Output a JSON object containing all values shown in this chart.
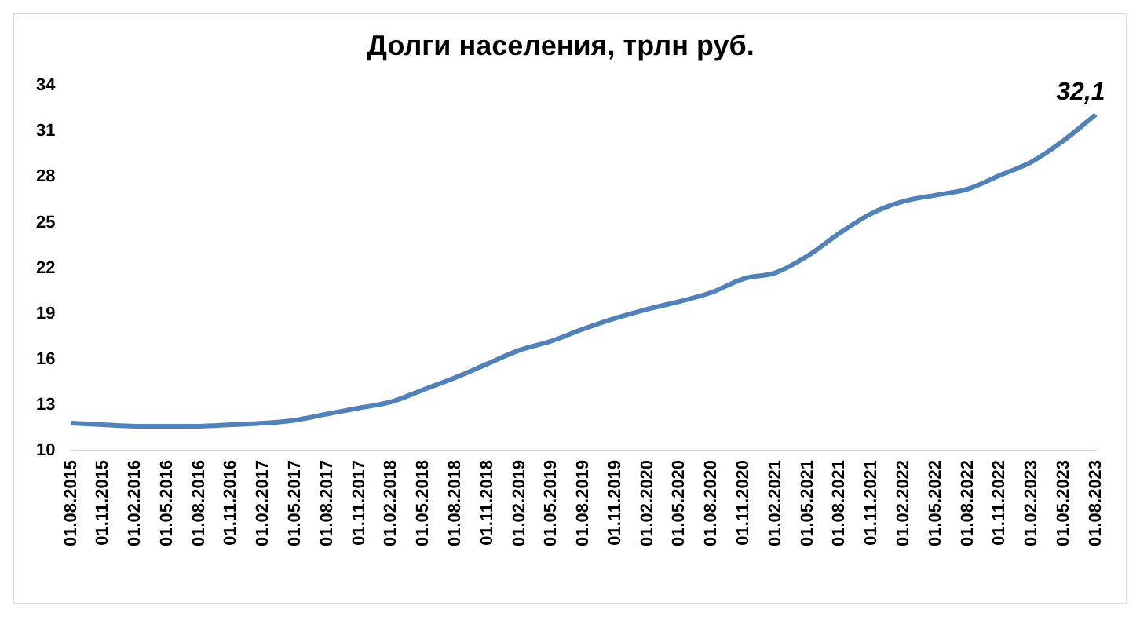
{
  "chart_data": {
    "type": "line",
    "title": "Долги населения, трлн руб.",
    "categories": [
      "01.08.2015",
      "01.11.2015",
      "01.02.2016",
      "01.05.2016",
      "01.08.2016",
      "01.11.2016",
      "01.02.2017",
      "01.05.2017",
      "01.08.2017",
      "01.11.2017",
      "01.02.2018",
      "01.05.2018",
      "01.08.2018",
      "01.11.2018",
      "01.02.2019",
      "01.05.2019",
      "01.08.2019",
      "01.11.2019",
      "01.02.2020",
      "01.05.2020",
      "01.08.2020",
      "01.11.2020",
      "01.02.2021",
      "01.05.2021",
      "01.08.2021",
      "01.11.2021",
      "01.02.2022",
      "01.05.2022",
      "01.08.2022",
      "01.11.2022",
      "01.02.2023",
      "01.05.2023",
      "01.08.2023"
    ],
    "series": [
      {
        "color": "#4f81bd",
        "values": [
          11.8,
          11.7,
          11.6,
          11.6,
          11.6,
          11.7,
          11.8,
          12.0,
          12.4,
          12.8,
          13.2,
          14.0,
          14.8,
          15.7,
          16.6,
          17.2,
          18.0,
          18.7,
          19.3,
          19.8,
          20.4,
          21.3,
          21.7,
          22.8,
          24.3,
          25.6,
          26.4,
          26.8,
          27.2,
          28.1,
          29.0,
          30.4,
          32.1
        ],
        "value_labels": [
          null,
          null,
          null,
          null,
          null,
          null,
          null,
          null,
          null,
          null,
          null,
          null,
          null,
          null,
          null,
          null,
          null,
          null,
          null,
          null,
          null,
          null,
          null,
          null,
          null,
          null,
          null,
          null,
          null,
          null,
          null,
          null,
          "32,1"
        ]
      }
    ],
    "ylim": [
      10,
      34
    ],
    "yticks": [
      10,
      13,
      16,
      19,
      22,
      25,
      28,
      31,
      34
    ],
    "grid": false,
    "legend": false,
    "marker": "none",
    "line_style": "solid"
  }
}
